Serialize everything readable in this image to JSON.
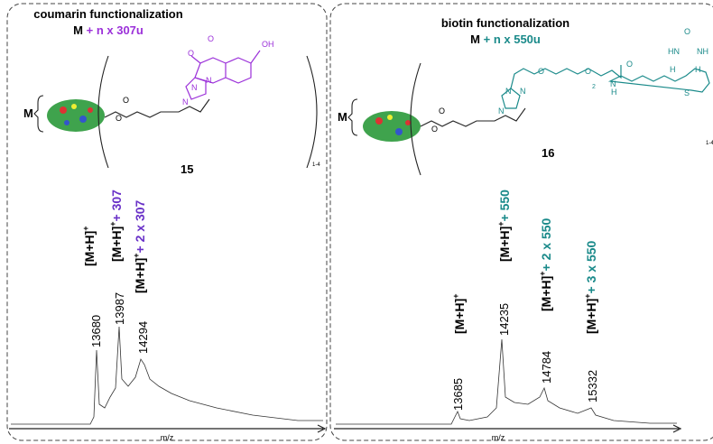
{
  "panels": [
    {
      "title": "coumarin functionalization",
      "formula": {
        "base": "M",
        "increment": "+ n x 307u"
      },
      "protein_label": "M",
      "repeat": "1-4",
      "compound": "15",
      "atoms": [
        "O",
        "O",
        "N",
        "N",
        "N",
        "O",
        "O",
        "OH"
      ],
      "annotations": [
        {
          "base": "[M+H]",
          "sup": "+"
        },
        {
          "base": "[M+H]",
          "sup": "+",
          "increment": "+ 307"
        },
        {
          "base": "[M+H]",
          "sup": "+",
          "increment": "+ 2 x 307"
        }
      ],
      "peaks": [
        "13680",
        "13987",
        "14294"
      ],
      "x_label": "m/z"
    },
    {
      "title": "biotin functionalization",
      "formula": {
        "base": "M",
        "increment": "+ n x 550u"
      },
      "protein_label": "M",
      "repeat": "1-4",
      "compound": "16",
      "atoms": [
        "O",
        "O",
        "N",
        "N",
        "N",
        "O",
        "O",
        "2",
        "N",
        "H",
        "O",
        "O",
        "HN",
        "NH",
        "H",
        "H",
        "S"
      ],
      "annotations": [
        {
          "base": "[M+H]",
          "sup": "+"
        },
        {
          "base": "[M+H]",
          "sup": "+",
          "increment": "+ 550"
        },
        {
          "base": "[M+H]",
          "sup": "+",
          "increment": "+ 2 x 550"
        },
        {
          "base": "[M+H]",
          "sup": "+",
          "increment": "+ 3 x 550"
        }
      ],
      "peaks": [
        "13685",
        "14235",
        "14784",
        "15332"
      ],
      "x_label": "m/z"
    }
  ]
}
